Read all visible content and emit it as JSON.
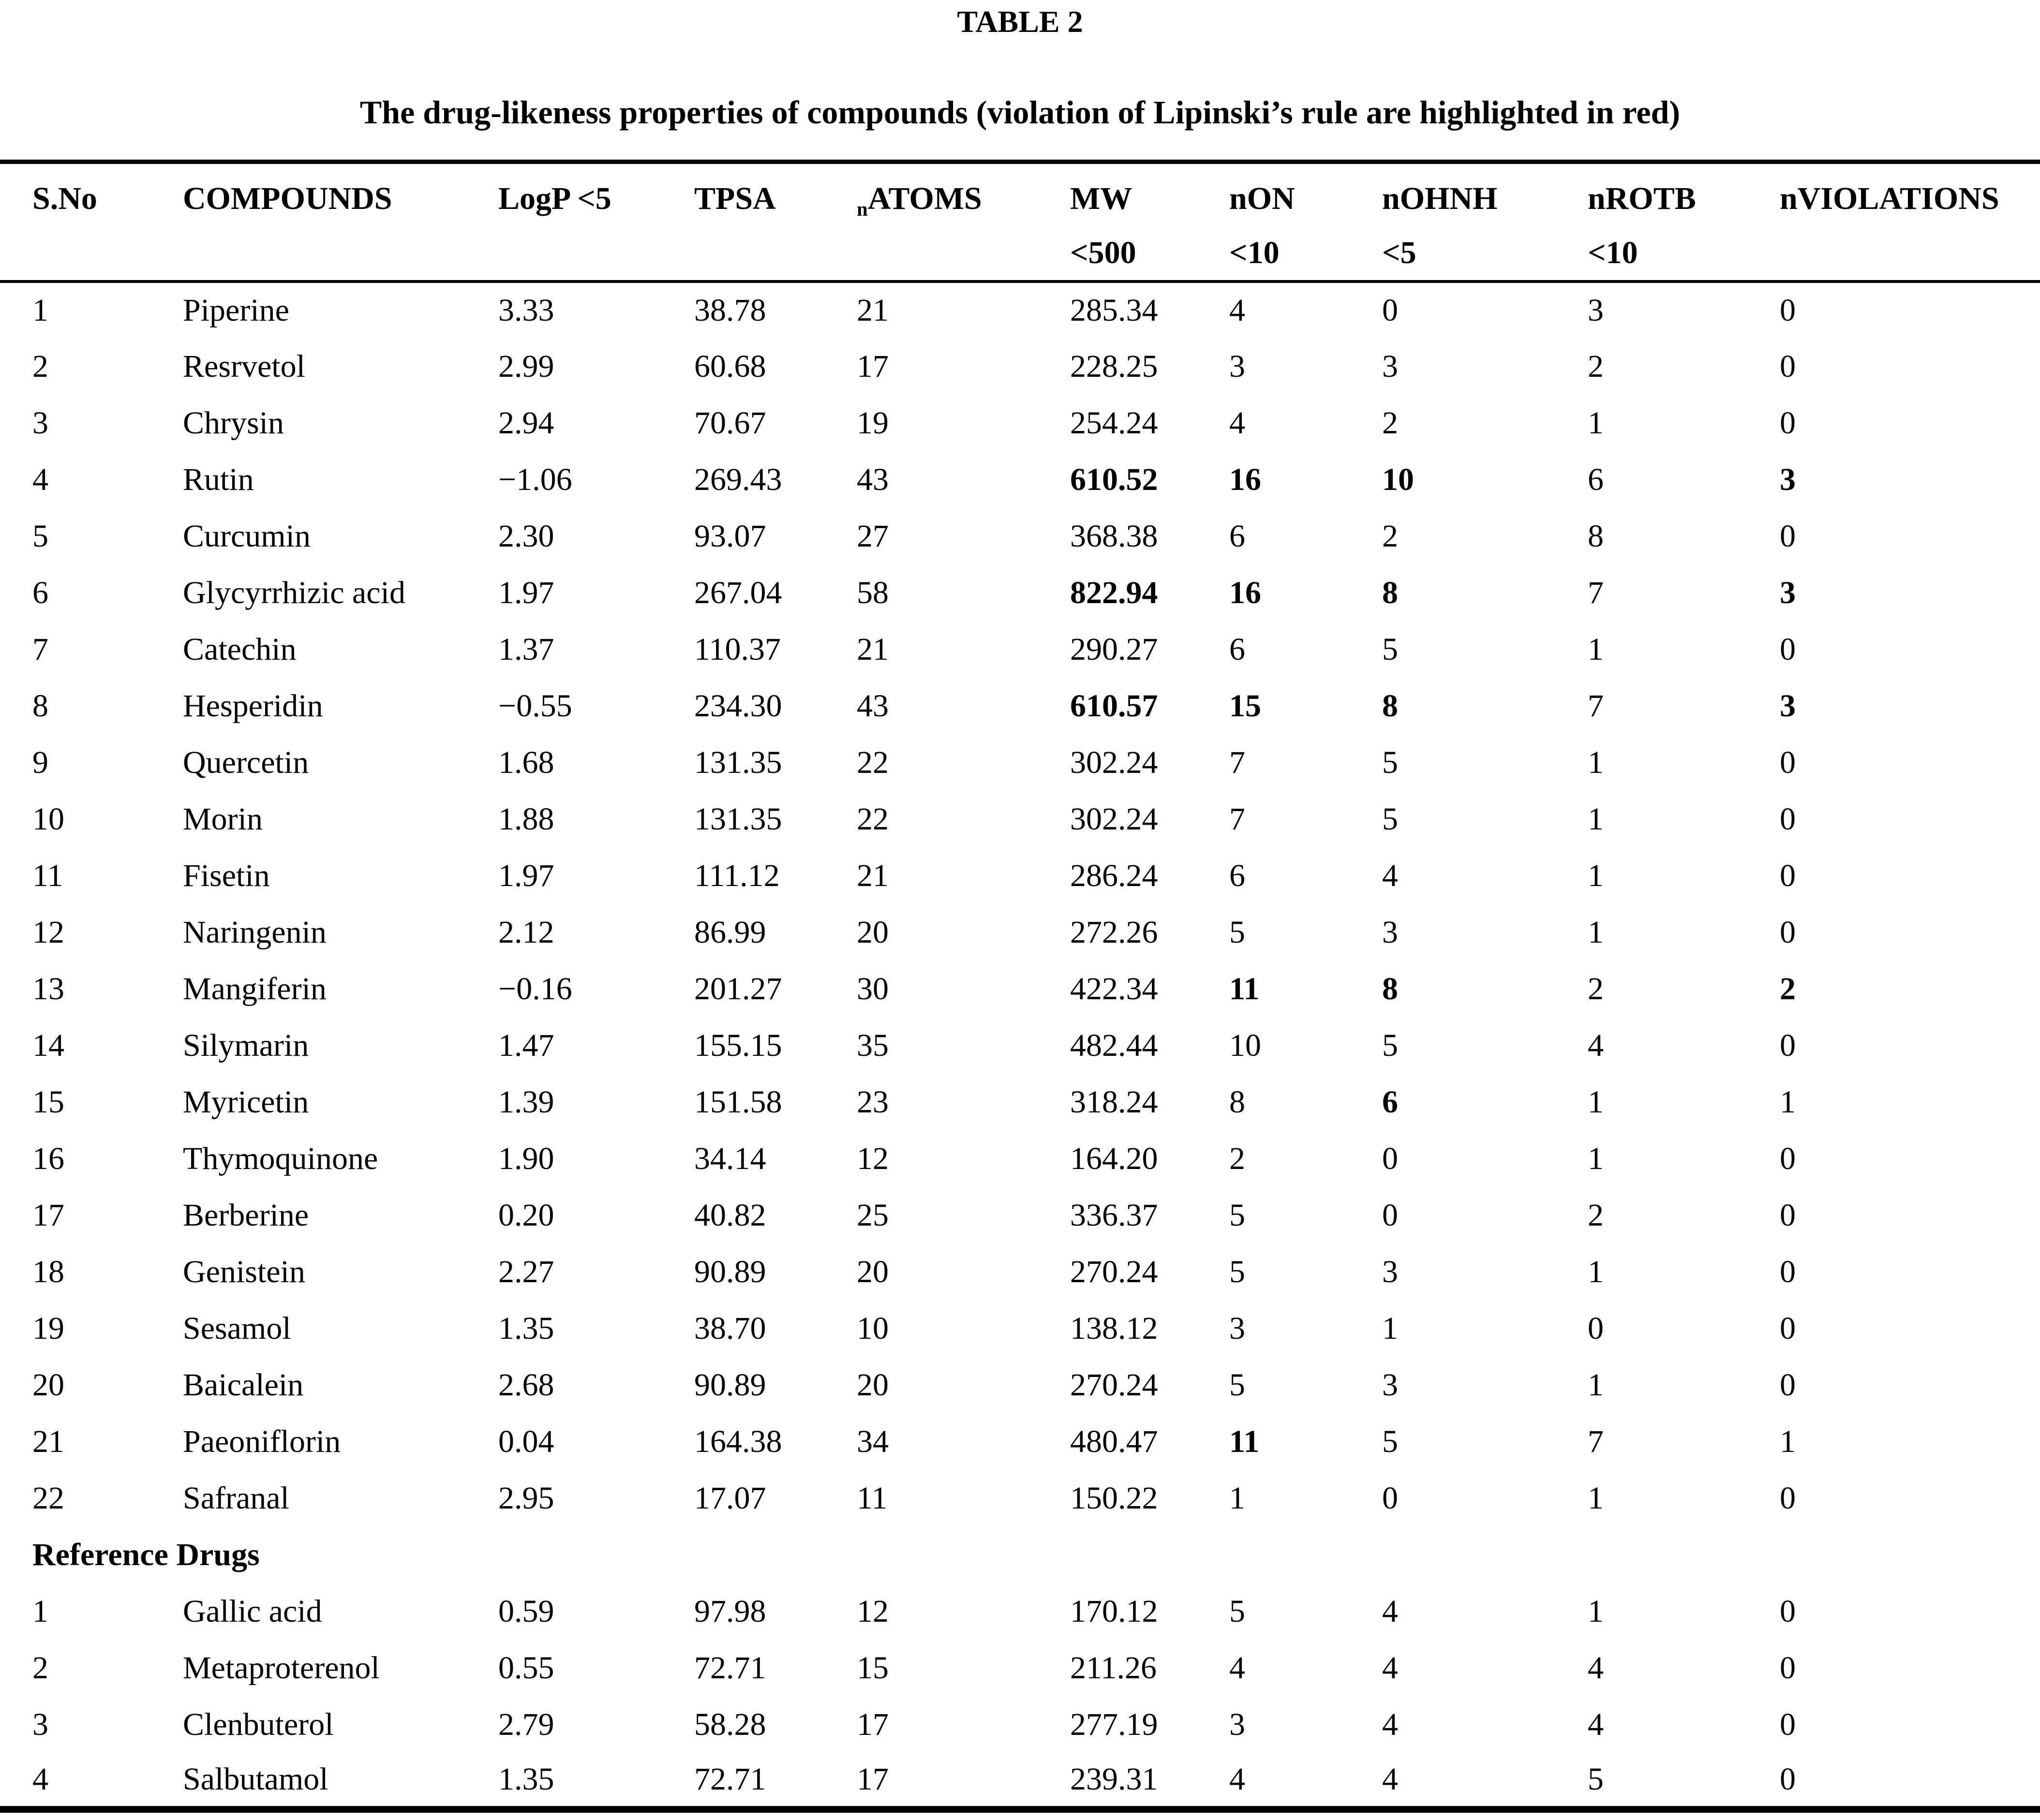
{
  "page": {
    "table_label": "TABLE 2",
    "caption": "The drug-likeness properties of compounds (violation of Lipinski’s rule are highlighted in red)"
  },
  "table": {
    "column_fields": [
      "sno",
      "compound",
      "logp",
      "tpsa",
      "natoms",
      "mw",
      "non",
      "nohnh",
      "nrotb",
      "nviol"
    ],
    "columns": [
      {
        "field": "sno",
        "line1": "S.No",
        "line2": ""
      },
      {
        "field": "compound",
        "line1": "COMPOUNDS",
        "line2": ""
      },
      {
        "field": "logp",
        "line1": "LogP <5",
        "line2": ""
      },
      {
        "field": "tpsa",
        "line1": "TPSA",
        "line2": ""
      },
      {
        "field": "natoms",
        "sub_prefix": "n",
        "line1": "ATOMS",
        "line2": ""
      },
      {
        "field": "mw",
        "line1": "MW",
        "line2": "<500"
      },
      {
        "field": "non",
        "line1": "nON",
        "line2": "<10"
      },
      {
        "field": "nohnh",
        "line1": "nOHNH",
        "line2": "<5"
      },
      {
        "field": "nrotb",
        "line1": "nROTB",
        "line2": "<10"
      },
      {
        "field": "nviol",
        "line1": "nVIOLATIONS",
        "line2": ""
      }
    ],
    "violation_color": "#000000",
    "compound_rows": [
      {
        "values": [
          "1",
          "Piperine",
          "3.33",
          "38.78",
          "21",
          "285.34",
          "4",
          "0",
          "3",
          "0"
        ],
        "bold": []
      },
      {
        "values": [
          "2",
          "Resrvetol",
          "2.99",
          "60.68",
          "17",
          "228.25",
          "3",
          "3",
          "2",
          "0"
        ],
        "bold": []
      },
      {
        "values": [
          "3",
          "Chrysin",
          "2.94",
          "70.67",
          "19",
          "254.24",
          "4",
          "2",
          "1",
          "0"
        ],
        "bold": []
      },
      {
        "values": [
          "4",
          "Rutin",
          "−1.06",
          "269.43",
          "43",
          "610.52",
          "16",
          "10",
          "6",
          "3"
        ],
        "bold": [
          5,
          6,
          7,
          9
        ]
      },
      {
        "values": [
          "5",
          "Curcumin",
          "2.30",
          "93.07",
          "27",
          "368.38",
          "6",
          "2",
          "8",
          "0"
        ],
        "bold": []
      },
      {
        "values": [
          "6",
          "Glycyrrhizic acid",
          "1.97",
          "267.04",
          "58",
          "822.94",
          "16",
          "8",
          "7",
          "3"
        ],
        "bold": [
          5,
          6,
          7,
          9
        ]
      },
      {
        "values": [
          "7",
          "Catechin",
          "1.37",
          "110.37",
          "21",
          "290.27",
          "6",
          "5",
          "1",
          "0"
        ],
        "bold": []
      },
      {
        "values": [
          "8",
          "Hesperidin",
          "−0.55",
          "234.30",
          "43",
          "610.57",
          "15",
          "8",
          "7",
          "3"
        ],
        "bold": [
          5,
          6,
          7,
          9
        ]
      },
      {
        "values": [
          "9",
          "Quercetin",
          "1.68",
          "131.35",
          "22",
          "302.24",
          "7",
          "5",
          "1",
          "0"
        ],
        "bold": []
      },
      {
        "values": [
          "10",
          "Morin",
          "1.88",
          "131.35",
          "22",
          "302.24",
          "7",
          "5",
          "1",
          "0"
        ],
        "bold": []
      },
      {
        "values": [
          "11",
          "Fisetin",
          "1.97",
          "111.12",
          "21",
          "286.24",
          "6",
          "4",
          "1",
          "0"
        ],
        "bold": []
      },
      {
        "values": [
          "12",
          "Naringenin",
          "2.12",
          "86.99",
          "20",
          "272.26",
          "5",
          "3",
          "1",
          "0"
        ],
        "bold": []
      },
      {
        "values": [
          "13",
          "Mangiferin",
          "−0.16",
          "201.27",
          "30",
          "422.34",
          "11",
          "8",
          "2",
          "2"
        ],
        "bold": [
          6,
          7,
          9
        ]
      },
      {
        "values": [
          "14",
          "Silymarin",
          "1.47",
          "155.15",
          "35",
          "482.44",
          "10",
          "5",
          "4",
          "0"
        ],
        "bold": []
      },
      {
        "values": [
          "15",
          "Myricetin",
          "1.39",
          "151.58",
          "23",
          "318.24",
          "8",
          "6",
          "1",
          "1"
        ],
        "bold": [
          7
        ]
      },
      {
        "values": [
          "16",
          "Thymoquinone",
          "1.90",
          "34.14",
          "12",
          "164.20",
          "2",
          "0",
          "1",
          "0"
        ],
        "bold": []
      },
      {
        "values": [
          "17",
          "Berberine",
          "0.20",
          "40.82",
          "25",
          "336.37",
          "5",
          "0",
          "2",
          "0"
        ],
        "bold": []
      },
      {
        "values": [
          "18",
          "Genistein",
          "2.27",
          "90.89",
          "20",
          "270.24",
          "5",
          "3",
          "1",
          "0"
        ],
        "bold": []
      },
      {
        "values": [
          "19",
          "Sesamol",
          "1.35",
          "38.70",
          "10",
          "138.12",
          "3",
          "1",
          "0",
          "0"
        ],
        "bold": []
      },
      {
        "values": [
          "20",
          "Baicalein",
          "2.68",
          "90.89",
          "20",
          "270.24",
          "5",
          "3",
          "1",
          "0"
        ],
        "bold": []
      },
      {
        "values": [
          "21",
          "Paeoniflorin",
          "0.04",
          "164.38",
          "34",
          "480.47",
          "11",
          "5",
          "7",
          "1"
        ],
        "bold": [
          6
        ]
      },
      {
        "values": [
          "22",
          "Safranal",
          "2.95",
          "17.07",
          "11",
          "150.22",
          "1",
          "0",
          "1",
          "0"
        ],
        "bold": []
      }
    ],
    "section_header": "Reference Drugs",
    "reference_rows": [
      {
        "values": [
          "1",
          "Gallic acid",
          "0.59",
          "97.98",
          "12",
          "170.12",
          "5",
          "4",
          "1",
          "0"
        ],
        "bold": []
      },
      {
        "values": [
          "2",
          "Metaproterenol",
          "0.55",
          "72.71",
          "15",
          "211.26",
          "4",
          "4",
          "4",
          "0"
        ],
        "bold": []
      },
      {
        "values": [
          "3",
          "Clenbuterol",
          "2.79",
          "58.28",
          "17",
          "277.19",
          "3",
          "4",
          "4",
          "0"
        ],
        "bold": []
      },
      {
        "values": [
          "4",
          "Salbutamol",
          "1.35",
          "72.71",
          "17",
          "239.31",
          "4",
          "4",
          "5",
          "0"
        ],
        "bold": []
      }
    ]
  }
}
